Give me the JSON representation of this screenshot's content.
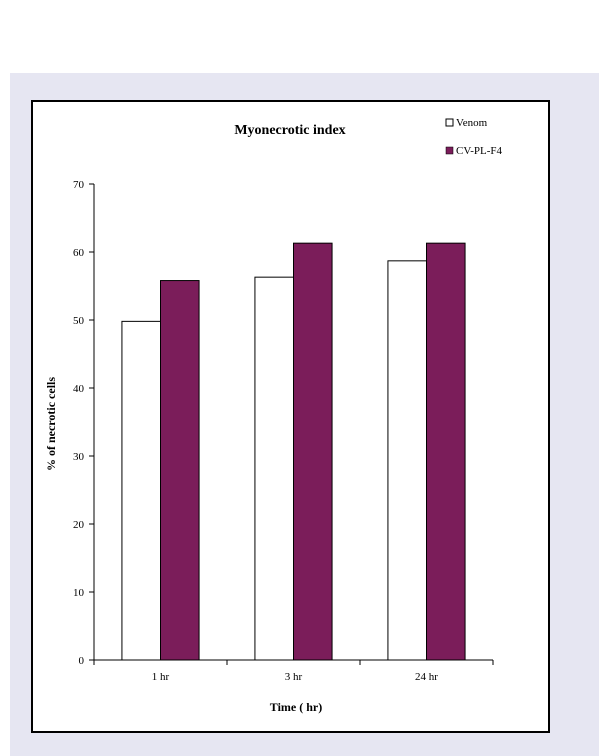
{
  "chart_data": {
    "type": "bar",
    "title": "Myonecrotic index",
    "xlabel": "Time ( hr)",
    "ylabel": "% of necrotic cells",
    "categories": [
      "1 hr",
      "3 hr",
      "24 hr"
    ],
    "ylim": [
      0,
      70
    ],
    "yticks": [
      0,
      10,
      20,
      30,
      40,
      50,
      60,
      70
    ],
    "grid": false,
    "legend_position": "top-right",
    "series": [
      {
        "name": "Venom",
        "values": [
          49.8,
          56.3,
          58.7
        ],
        "color": "#ffffff"
      },
      {
        "name": "CV-PL-F4",
        "values": [
          55.8,
          61.3,
          61.3
        ],
        "color": "#7b1d5a"
      }
    ]
  }
}
